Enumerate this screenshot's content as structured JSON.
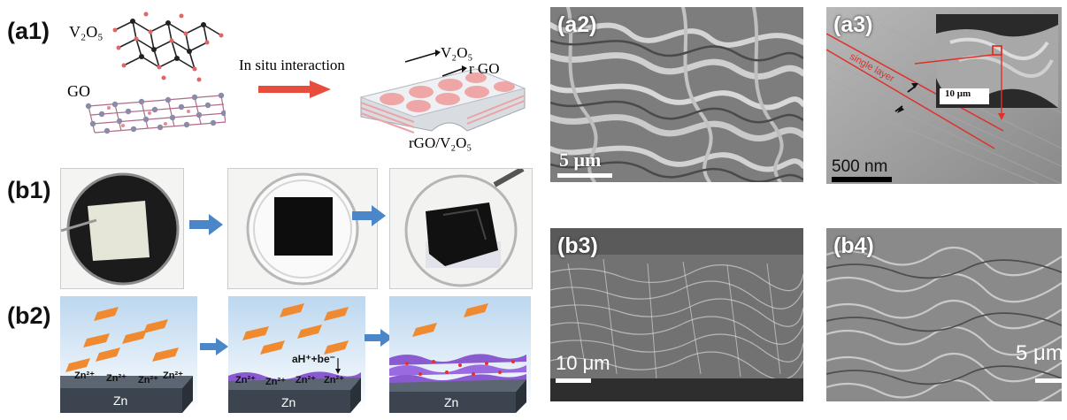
{
  "panels": {
    "a1": {
      "label": "(a1)",
      "v2o5": "V₂O₅",
      "go": "GO",
      "interaction": "In situ interaction",
      "product_v2o5": "V₂O₅",
      "product_rgo": "r GO",
      "product": "rGO/V₂O₅"
    },
    "b1": {
      "label": "(b1)"
    },
    "b2": {
      "label": "(b2)",
      "zn": "Zn",
      "zn_ion": "Zn²⁺",
      "reaction": "aH⁺+be⁻"
    },
    "a2": {
      "label": "(a2)",
      "scale": "5 μm"
    },
    "a3": {
      "label": "(a3)",
      "scale": "500 nm",
      "inset_scale": "10 μm",
      "annotation": "single layer"
    },
    "b3": {
      "label": "(b3)",
      "scale": "10 μm"
    },
    "b4": {
      "label": "(b4)",
      "scale": "5 μm"
    }
  },
  "colors": {
    "arrow_red": "#e84c3d",
    "arrow_blue": "#4a86c8",
    "annotation_red": "#e0302a",
    "flake_orange": "#f08a30",
    "sheet_purple": "#8a5ad0",
    "zn_block": "#3c4450"
  }
}
